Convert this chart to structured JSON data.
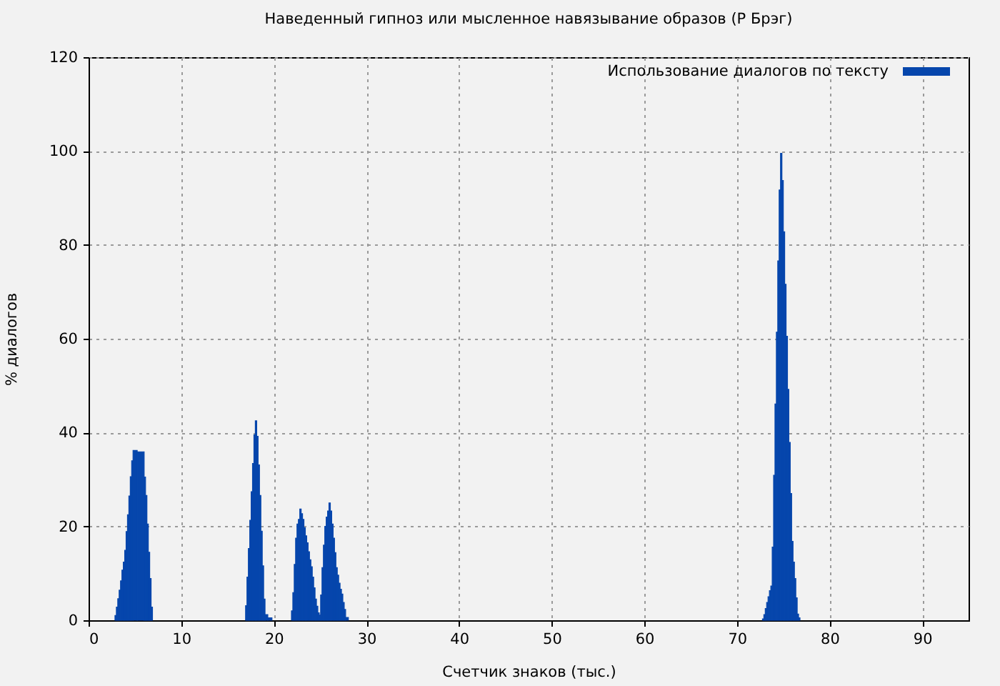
{
  "chart_data": {
    "type": "histogram",
    "title": "Наведенный гипноз или мысленное навязывание образов (Р Брэг)",
    "xlabel": "Счетчик знаков (тыс.)",
    "ylabel": "% диалогов",
    "bins": [
      2.85,
      3.0,
      3.15,
      3.3,
      3.45,
      3.6,
      3.75,
      3.9,
      4.05,
      4.2,
      4.35,
      4.5,
      4.65,
      4.8,
      5.25,
      6.0,
      6.15,
      6.3,
      6.45,
      6.6,
      6.75,
      6.9,
      16.95,
      17.1,
      17.25,
      17.4,
      17.55,
      17.7,
      17.85,
      18.0,
      18.15,
      18.3,
      18.45,
      18.6,
      18.75,
      18.9,
      19.05,
      19.35,
      19.8,
      21.9,
      22.05,
      22.2,
      22.35,
      22.5,
      22.65,
      22.8,
      22.95,
      23.1,
      23.25,
      23.4,
      23.55,
      23.7,
      23.85,
      24.0,
      24.15,
      24.3,
      24.45,
      24.6,
      24.75,
      24.9,
      25.05,
      25.2,
      25.35,
      25.5,
      25.65,
      25.8,
      25.95,
      26.1,
      26.25,
      26.4,
      26.55,
      26.7,
      26.85,
      27.0,
      27.15,
      27.3,
      27.45,
      27.6,
      27.75,
      28.05,
      72.75,
      72.9,
      73.05,
      73.2,
      73.35,
      73.5,
      73.65,
      73.8,
      73.95,
      74.1,
      74.25,
      74.4,
      74.55,
      74.7,
      74.85,
      75.0,
      75.15,
      75.3,
      75.45,
      75.6,
      75.75,
      75.9,
      76.05,
      76.2,
      76.35,
      76.5,
      76.65,
      76.8
    ],
    "series": [
      {
        "name": "Использование диалогов по тексту",
        "color": "#0646ac",
        "values": [
          1.0,
          2.8,
          4.6,
          6.4,
          8.4,
          10.7,
          12.4,
          14.9,
          18.9,
          22.5,
          26.5,
          30.6,
          34.0,
          36.2,
          35.9,
          30.5,
          26.6,
          20.5,
          14.5,
          8.9,
          2.8,
          null,
          3.1,
          9.2,
          15.3,
          21.3,
          27.4,
          33.4,
          39.5,
          42.5,
          39.2,
          33.1,
          26.6,
          19.0,
          11.6,
          4.5,
          1.2,
          0.5,
          null,
          2.0,
          5.9,
          11.9,
          17.5,
          20.5,
          21.5,
          23.7,
          22.7,
          21.5,
          19.7,
          18.0,
          16.5,
          14.6,
          12.9,
          11.4,
          9.2,
          6.9,
          4.5,
          3.0,
          1.6,
          1.1,
          5.4,
          11.2,
          16.0,
          20.0,
          22.0,
          23.3,
          25.0,
          23.3,
          20.5,
          17.5,
          14.4,
          11.2,
          9.6,
          7.9,
          6.6,
          5.6,
          3.8,
          2.3,
          0.6,
          null,
          0.3,
          1.2,
          2.5,
          3.8,
          5.0,
          6.3,
          7.3,
          15.6,
          30.9,
          46.1,
          61.4,
          76.6,
          91.7,
          99.5,
          93.7,
          82.8,
          71.6,
          60.5,
          49.2,
          37.9,
          27.0,
          16.8,
          12.4,
          8.9,
          4.8,
          1.3,
          0.5
        ]
      }
    ],
    "xlim": [
      0,
      95
    ],
    "ylim": [
      0,
      120
    ],
    "xticks": [
      0,
      10,
      20,
      30,
      40,
      50,
      60,
      70,
      80,
      90
    ],
    "yticks": [
      0,
      20,
      40,
      60,
      80,
      100,
      120
    ],
    "grid": true,
    "legend": "top right"
  }
}
